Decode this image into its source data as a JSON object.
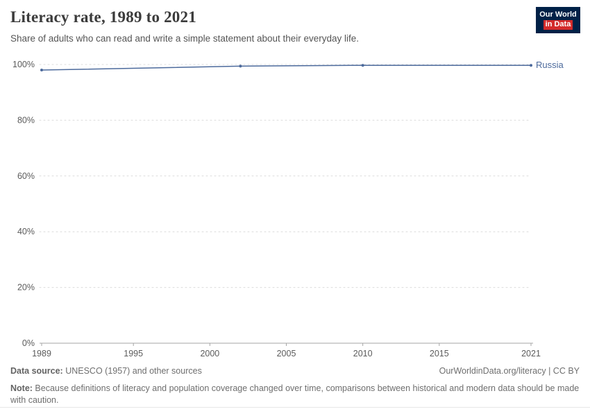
{
  "header": {
    "title": "Literacy rate, 1989 to 2021",
    "subtitle": "Share of adults who can read and write a simple statement about their everyday life."
  },
  "logo": {
    "line1": "Our World",
    "line2": "in Data",
    "bg_color": "#002147",
    "accent_color": "#d42b2b"
  },
  "chart_data": {
    "type": "line",
    "title": "Literacy rate, 1989 to 2021",
    "xlabel": "",
    "ylabel": "",
    "xlim": [
      1989,
      2021
    ],
    "ylim": [
      0,
      100
    ],
    "x_ticks": [
      1989,
      1995,
      2000,
      2005,
      2010,
      2015,
      2021
    ],
    "y_ticks": [
      0,
      20,
      40,
      60,
      80,
      100
    ],
    "y_tick_suffix": "%",
    "grid": "dashed-horizontal",
    "legend_position": "end-of-line-label",
    "series": [
      {
        "name": "Russia",
        "color": "#4C6A9C",
        "points": [
          {
            "x": 1989,
            "y": 98.0
          },
          {
            "x": 2002,
            "y": 99.4
          },
          {
            "x": 2010,
            "y": 99.7
          },
          {
            "x": 2021,
            "y": 99.7
          }
        ]
      }
    ]
  },
  "footer": {
    "datasource_label": "Data source:",
    "datasource_text": " UNESCO (1957) and other sources",
    "link": "OurWorldinData.org/literacy | CC BY",
    "note_label": "Note:",
    "note_text": " Because definitions of literacy and population coverage changed over time, comparisons between historical and modern data should be made with caution."
  }
}
